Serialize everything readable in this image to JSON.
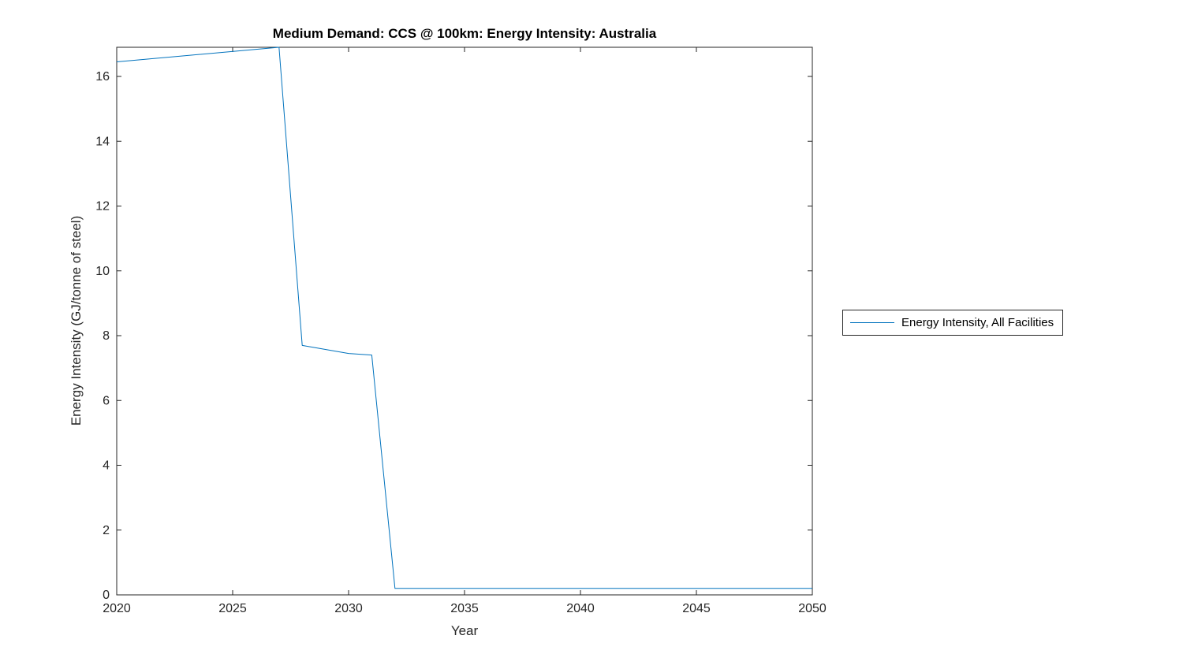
{
  "chart_data": {
    "type": "line",
    "title": "Medium Demand: CCS @ 100km: Energy Intensity: Australia",
    "xlabel": "Year",
    "ylabel": "Energy Intensity (GJ/tonne of steel)",
    "xlim": [
      2020,
      2050
    ],
    "ylim": [
      0,
      16.9
    ],
    "xticks": [
      2020,
      2025,
      2030,
      2035,
      2040,
      2045,
      2050
    ],
    "yticks": [
      0,
      2,
      4,
      6,
      8,
      10,
      12,
      14,
      16
    ],
    "grid": false,
    "axis_color": "#262626",
    "legend": {
      "position": "right-outside",
      "entries": [
        "Energy Intensity, All Facilities"
      ]
    },
    "series": [
      {
        "name": "Energy Intensity, All Facilities",
        "color": "#0072BD",
        "x": [
          2020,
          2027,
          2028,
          2030,
          2031,
          2032,
          2035,
          2040,
          2045,
          2050
        ],
        "y": [
          16.45,
          16.9,
          7.7,
          7.45,
          7.4,
          0.2,
          0.2,
          0.2,
          0.2,
          0.2
        ]
      }
    ]
  }
}
